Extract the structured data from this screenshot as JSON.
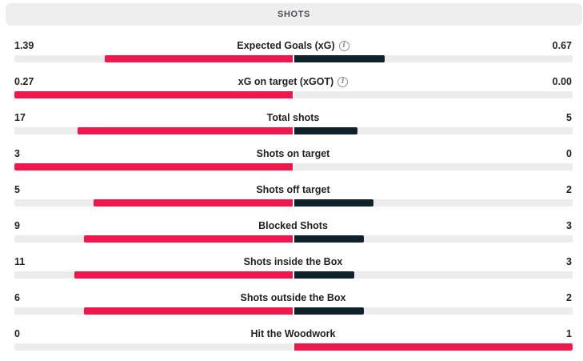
{
  "section": {
    "title": "SHOTS"
  },
  "colors": {
    "home": "#f0174c",
    "away": "#0f222b",
    "track": "#ececed"
  },
  "stats": [
    {
      "label": "Expected Goals (xG)",
      "home": "1.39",
      "away": "0.67",
      "home_num": 1.39,
      "away_num": 0.67,
      "info": true,
      "icon": "info-icon"
    },
    {
      "label": "xG on target (xGOT)",
      "home": "0.27",
      "away": "0.00",
      "home_num": 0.27,
      "away_num": 0.0,
      "info": true,
      "icon": "info-icon"
    },
    {
      "label": "Total shots",
      "home": "17",
      "away": "5",
      "home_num": 17,
      "away_num": 5,
      "info": false
    },
    {
      "label": "Shots on target",
      "home": "3",
      "away": "0",
      "home_num": 3,
      "away_num": 0,
      "info": false
    },
    {
      "label": "Shots off target",
      "home": "5",
      "away": "2",
      "home_num": 5,
      "away_num": 2,
      "info": false
    },
    {
      "label": "Blocked Shots",
      "home": "9",
      "away": "3",
      "home_num": 9,
      "away_num": 3,
      "info": false
    },
    {
      "label": "Shots inside the Box",
      "home": "11",
      "away": "3",
      "home_num": 11,
      "away_num": 3,
      "info": false
    },
    {
      "label": "Shots outside the Box",
      "home": "6",
      "away": "2",
      "home_num": 6,
      "away_num": 2,
      "info": false
    },
    {
      "label": "Hit the Woodwork",
      "home": "0",
      "away": "1",
      "home_num": 0,
      "away_num": 1,
      "info": false
    }
  ]
}
